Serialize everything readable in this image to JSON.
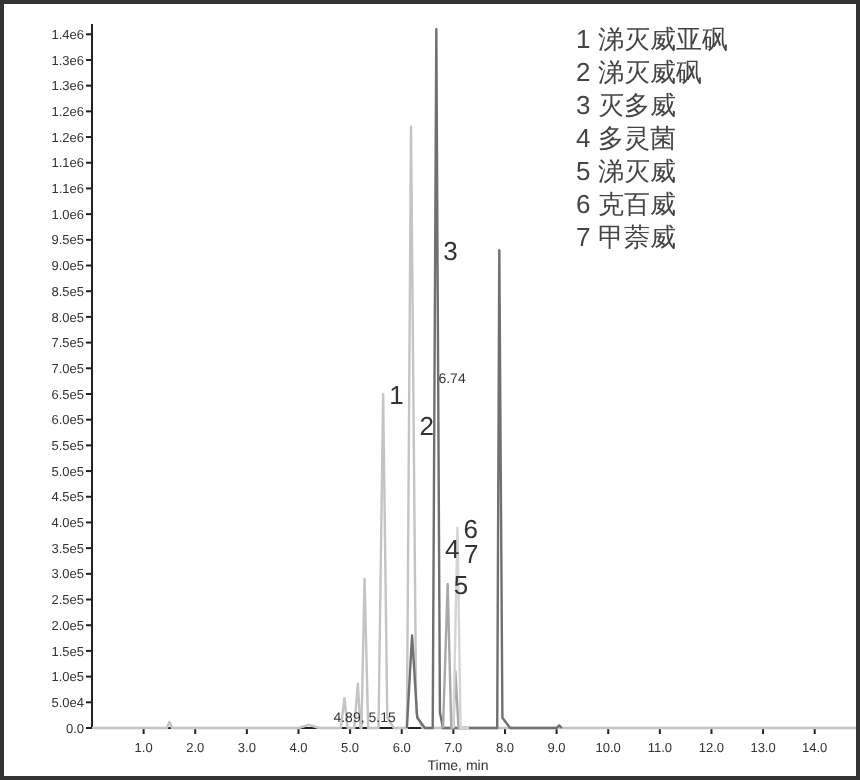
{
  "chart_data": {
    "type": "line",
    "xlabel": "Time, min",
    "xlim": [
      0,
      14.8
    ],
    "ylim": [
      0,
      1370000.0
    ],
    "xticks": [
      {
        "value": 1,
        "label": "1.0"
      },
      {
        "value": 2,
        "label": "2.0"
      },
      {
        "value": 3,
        "label": "3.0"
      },
      {
        "value": 4,
        "label": "4.0"
      },
      {
        "value": 5,
        "label": "5.0"
      },
      {
        "value": 6,
        "label": "6.0"
      },
      {
        "value": 7,
        "label": "7.0"
      },
      {
        "value": 8,
        "label": "8.0"
      },
      {
        "value": 9,
        "label": "9.0"
      },
      {
        "value": 10,
        "label": "10.0"
      },
      {
        "value": 11,
        "label": "11.0"
      },
      {
        "value": 12,
        "label": "12.0"
      },
      {
        "value": 13,
        "label": "13.0"
      },
      {
        "value": 14,
        "label": "14.0"
      }
    ],
    "yticks": [
      {
        "value": 0,
        "label": "0.0"
      },
      {
        "value": 50000,
        "label": "5.0e4"
      },
      {
        "value": 100000,
        "label": "1.0e5"
      },
      {
        "value": 150000,
        "label": "1.5e5"
      },
      {
        "value": 200000,
        "label": "2.0e5"
      },
      {
        "value": 250000,
        "label": "2.5e5"
      },
      {
        "value": 300000,
        "label": "3.0e5"
      },
      {
        "value": 350000,
        "label": "3.5e5"
      },
      {
        "value": 400000,
        "label": "4.0e5"
      },
      {
        "value": 450000,
        "label": "4.5e5"
      },
      {
        "value": 500000,
        "label": "5.0e5"
      },
      {
        "value": 550000,
        "label": "5.5e5"
      },
      {
        "value": 600000,
        "label": "6.0e5"
      },
      {
        "value": 650000,
        "label": "6.5e5"
      },
      {
        "value": 700000,
        "label": "7.0e5"
      },
      {
        "value": 750000,
        "label": "7.5e5"
      },
      {
        "value": 800000,
        "label": "8.0e5"
      },
      {
        "value": 850000,
        "label": "8.5e5"
      },
      {
        "value": 900000,
        "label": "9.0e5"
      },
      {
        "value": 950000,
        "label": "9.5e5"
      },
      {
        "value": 1000000,
        "label": "1.0e6"
      },
      {
        "value": 1050000,
        "label": "1.1e6"
      },
      {
        "value": 1100000,
        "label": "1.1e6"
      },
      {
        "value": 1150000,
        "label": "1.2e6"
      },
      {
        "value": 1200000,
        "label": "1.2e6"
      },
      {
        "value": 1250000,
        "label": "1.3e6"
      },
      {
        "value": 1300000,
        "label": "1.3e6"
      },
      {
        "value": 1350000,
        "label": "1.4e6"
      }
    ],
    "series": [
      {
        "color": "#c4c4c4",
        "x": [
          0,
          1.45,
          1.5,
          1.55,
          4.0,
          4.2,
          4.4,
          4.82,
          4.89,
          4.95,
          5.08,
          5.15,
          5.2,
          5.22,
          5.28,
          5.35,
          5.55,
          5.64,
          5.72,
          5.85,
          6.1,
          6.18,
          6.28,
          6.4,
          14.8
        ],
        "values": [
          0,
          0,
          12000,
          0,
          0,
          6000,
          0,
          0,
          58000,
          0,
          0,
          86000,
          0,
          0,
          290000,
          0,
          0,
          650000,
          20000,
          0,
          0,
          1170000,
          30000,
          0,
          0
        ]
      },
      {
        "color": "#707070",
        "x": [
          6.1,
          6.2,
          6.3,
          6.45,
          6.6,
          6.67,
          6.74,
          6.8,
          7.7,
          7.85,
          7.89,
          7.95,
          8.1,
          9.0,
          9.05,
          9.1
        ],
        "values": [
          0,
          180000,
          20000,
          0,
          0,
          1360000,
          30000,
          0,
          0,
          0,
          930000,
          20000,
          0,
          0,
          5000,
          0
        ]
      },
      {
        "color": "#a8a8a8",
        "x": [
          6.8,
          6.89,
          6.96,
          7.0,
          7.04,
          7.1,
          7.3
        ],
        "values": [
          0,
          280000,
          0,
          0,
          110000,
          0,
          0
        ]
      },
      {
        "color": "#d4d4d4",
        "x": [
          7.0,
          7.08,
          7.14,
          7.3
        ],
        "values": [
          0,
          390000,
          0,
          0
        ]
      }
    ],
    "annotations": [
      "1 涕灭威亚砜",
      "2 涕灭威砜",
      "3 灭多威",
      "4 多灵菌",
      "5 涕灭威",
      "6 克百威",
      "7 甲萘威",
      {
        "text": "1",
        "x": 5.64,
        "y": 650000
      },
      {
        "text": "2",
        "x": 6.23,
        "y": 590000
      },
      {
        "text": "3",
        "x": 6.69,
        "y": 930000
      },
      {
        "text": "4",
        "x": 6.723,
        "y": 350000
      },
      {
        "text": "5",
        "x": 6.89,
        "y": 280000
      },
      {
        "text": "6",
        "x": 7.08,
        "y": 390000
      },
      {
        "text": "7",
        "x": 7.088,
        "y": 340000
      },
      {
        "text": "6.74",
        "x": 6.634,
        "y": 660000
      },
      {
        "text": "4.89, 5.15",
        "x": 4.6,
        "y": 0
      }
    ]
  }
}
